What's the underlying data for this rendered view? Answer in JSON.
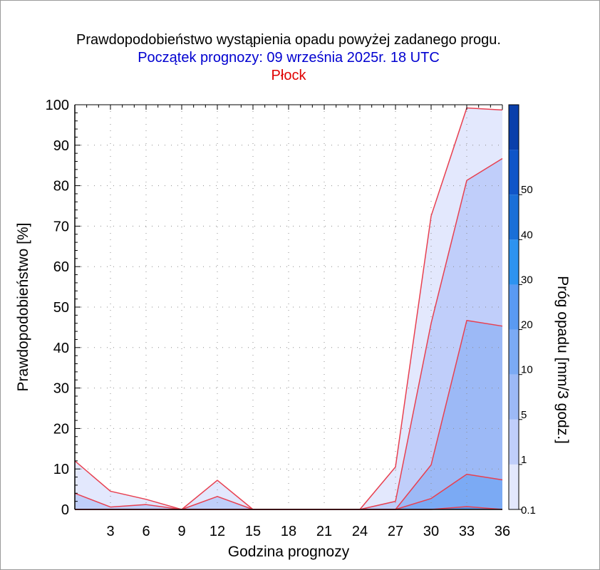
{
  "chart_data": {
    "type": "area",
    "title": "Prawdopodobieństwo wystąpienia opadu powyżej zadanego progu.",
    "subtitle": "Początek prognozy: 09 września 2025r. 18 UTC",
    "location": "Płock",
    "xlabel": "Godzina prognozy",
    "ylabel": "Prawdopodobieństwo [%]",
    "xlim": [
      0,
      36
    ],
    "ylim": [
      0,
      100
    ],
    "xticks": [
      3,
      6,
      9,
      12,
      15,
      18,
      21,
      24,
      27,
      30,
      33,
      36
    ],
    "yticks": [
      0,
      10,
      20,
      30,
      40,
      50,
      60,
      70,
      80,
      90,
      100
    ],
    "grid": "dotted",
    "x": [
      0,
      3,
      6,
      9,
      12,
      15,
      18,
      21,
      24,
      27,
      30,
      33,
      36
    ],
    "series": [
      {
        "name": "0.1",
        "color": "#e3e8fd",
        "values": [
          12,
          4.5,
          2.5,
          0,
          7.2,
          0,
          0,
          0,
          0,
          10.5,
          72.5,
          99.2,
          98.7
        ]
      },
      {
        "name": "1",
        "color": "#c0cefa",
        "values": [
          4,
          0.6,
          1.2,
          0,
          3.2,
          0,
          0,
          0,
          0,
          2,
          46,
          81.3,
          86.7
        ]
      },
      {
        "name": "5",
        "color": "#9cb9f6",
        "values": [
          0,
          0,
          0,
          0,
          0,
          0,
          0,
          0,
          0,
          0,
          11,
          46.7,
          45.3
        ]
      },
      {
        "name": "10",
        "color": "#7baaf4",
        "values": [
          0,
          0,
          0,
          0,
          0,
          0,
          0,
          0,
          0,
          0,
          2.7,
          8.7,
          7.3
        ]
      },
      {
        "name": "20",
        "color": "#5a9af2",
        "values": [
          0,
          0,
          0,
          0,
          0,
          0,
          0,
          0,
          0,
          0,
          0,
          0.7,
          0
        ]
      }
    ],
    "colorbar": {
      "label": "Próg opadu [mm/3 godz.]",
      "ticks": [
        "0.1",
        "1",
        "5",
        "10",
        "20",
        "30",
        "40",
        "50"
      ],
      "colors": [
        "#e3e8fd",
        "#c0cefa",
        "#9cb9f6",
        "#7baaf4",
        "#5a9af2",
        "#2d93f0",
        "#1a6fd8",
        "#0f55c8",
        "#0a3fab"
      ]
    },
    "line_color": "#e84050"
  }
}
